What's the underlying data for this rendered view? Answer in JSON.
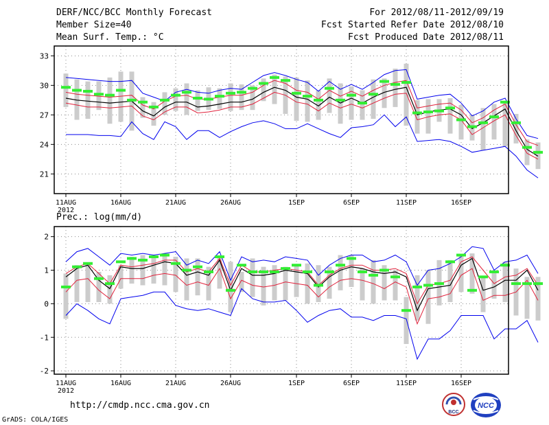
{
  "header": {
    "title": "DERF/NCC/BCC Monthly Forecast",
    "member": "Member Size=40",
    "variable": "Mean Surf. Temp.: °C",
    "period": "For 2012/08/11-2012/09/19",
    "started": "Fcst Started Refer Date 2012/08/10",
    "produced": "Fcst Produced Date 2012/08/11"
  },
  "footer": {
    "url": "http://cmdp.ncc.cma.gov.cn",
    "grads": "GrADS: COLA/IGES",
    "bcc_logo": "BCC",
    "ncc_logo": "NCC"
  },
  "colors": {
    "upper": "#0000ee",
    "lower": "#0000ee",
    "q_upper": "#e0203a",
    "q_lower": "#e0203a",
    "median": "#000000",
    "mean_mark": "#33ee33",
    "box": "#cccccc",
    "grid": "#888888"
  },
  "chart_data": [
    {
      "type": "box-plume",
      "title": "Mean Surf. Temp.: °C",
      "ylim": [
        19,
        34
      ],
      "yticks": [
        21,
        24,
        27,
        30,
        33
      ],
      "ytick_labels": [
        "21",
        "24",
        "27",
        "30",
        "33"
      ],
      "xtick_days": [
        0,
        5,
        10,
        15,
        21,
        26,
        31,
        36
      ],
      "xtick_labels": [
        "11AUG",
        "16AUG",
        "21AUG",
        "26AUG",
        "1SEP",
        "6SEP",
        "11SEP",
        "16SEP"
      ],
      "x_year_label": "2012",
      "upper": [
        30.8,
        30.7,
        30.6,
        30.5,
        30.4,
        30.4,
        30.5,
        29.2,
        28.8,
        28.4,
        29.3,
        29.6,
        29.3,
        29.2,
        29.5,
        29.7,
        29.6,
        30.3,
        31.0,
        31.3,
        31.0,
        30.6,
        30.3,
        29.4,
        30.4,
        29.6,
        30.1,
        29.6,
        30.3,
        31.1,
        31.5,
        31.6,
        28.6,
        28.8,
        29.0,
        29.1,
        28.2,
        26.9,
        27.4,
        28.3,
        28.7,
        26.6,
        24.9,
        24.6
      ],
      "q_upper": [
        29.3,
        29.1,
        29.0,
        28.9,
        28.8,
        28.9,
        29.0,
        28.0,
        27.6,
        28.4,
        28.9,
        29.0,
        28.6,
        28.6,
        28.8,
        29.0,
        29.0,
        29.3,
        30.0,
        30.5,
        30.2,
        29.5,
        29.3,
        28.6,
        29.5,
        28.9,
        29.4,
        28.9,
        29.5,
        30.0,
        30.3,
        30.5,
        27.7,
        27.9,
        28.1,
        28.2,
        27.5,
        26.2,
        26.7,
        27.5,
        28.1,
        26.0,
        24.3,
        23.9
      ],
      "median": [
        28.7,
        28.5,
        28.4,
        28.3,
        28.2,
        28.3,
        28.4,
        27.4,
        26.9,
        27.8,
        28.3,
        28.3,
        27.8,
        27.9,
        28.1,
        28.3,
        28.3,
        28.6,
        29.3,
        29.8,
        29.5,
        28.8,
        28.6,
        27.9,
        28.8,
        28.2,
        28.7,
        28.2,
        28.8,
        29.3,
        29.6,
        29.8,
        27.0,
        27.3,
        27.5,
        27.6,
        27.0,
        25.6,
        26.2,
        26.9,
        27.6,
        25.4,
        23.5,
        22.8
      ],
      "q_lower": [
        28.2,
        28.0,
        27.8,
        27.8,
        27.7,
        27.8,
        27.9,
        26.9,
        26.5,
        27.3,
        27.8,
        27.8,
        27.2,
        27.3,
        27.5,
        27.8,
        27.8,
        28.1,
        28.7,
        29.3,
        29.0,
        28.3,
        28.1,
        27.4,
        28.2,
        27.7,
        28.1,
        27.7,
        28.2,
        28.7,
        29.1,
        29.2,
        26.5,
        26.8,
        27.0,
        27.1,
        26.5,
        25.0,
        25.7,
        26.4,
        27.0,
        24.9,
        23.1,
        22.5
      ],
      "lower": [
        25.0,
        25.0,
        25.0,
        24.9,
        24.9,
        24.8,
        26.3,
        25.1,
        24.5,
        26.3,
        25.8,
        24.5,
        25.4,
        25.4,
        24.7,
        25.3,
        25.8,
        26.2,
        26.4,
        26.1,
        25.6,
        25.6,
        26.1,
        25.6,
        25.1,
        24.7,
        25.7,
        25.8,
        26.0,
        27.0,
        25.8,
        26.8,
        24.3,
        24.4,
        24.5,
        24.3,
        23.8,
        23.2,
        23.4,
        23.6,
        23.8,
        22.8,
        21.4,
        20.6
      ],
      "mean_marks": [
        29.8,
        29.5,
        29.4,
        29.1,
        29.0,
        29.5,
        28.5,
        28.3,
        27.8,
        28.5,
        29.0,
        29.3,
        28.7,
        28.6,
        28.9,
        29.2,
        29.3,
        29.7,
        30.2,
        30.8,
        30.5,
        29.2,
        28.9,
        28.5,
        29.7,
        28.5,
        29.0,
        28.2,
        29.1,
        30.4,
        30.1,
        30.3,
        27.2,
        27.3,
        27.4,
        27.7,
        26.5,
        25.8,
        26.2,
        26.8,
        28.3,
        26.2,
        23.7,
        23.2
      ],
      "box_hi": [
        31.2,
        30.6,
        30.4,
        30.4,
        30.8,
        31.4,
        31.4,
        28.8,
        28.3,
        29.3,
        29.7,
        30.2,
        29.5,
        29.8,
        29.7,
        30.2,
        30.1,
        30.0,
        30.7,
        31.1,
        30.9,
        30.8,
        30.5,
        29.5,
        30.7,
        30.2,
        29.9,
        29.5,
        30.6,
        30.7,
        31.7,
        32.2,
        28.5,
        28.6,
        28.6,
        28.7,
        28.0,
        27.0,
        27.7,
        28.1,
        28.3,
        27.1,
        24.5,
        24.2
      ],
      "box_lo": [
        27.8,
        26.5,
        26.6,
        27.5,
        26.1,
        26.3,
        25.4,
        26.7,
        25.9,
        27.0,
        27.4,
        27.0,
        27.4,
        27.5,
        27.6,
        27.4,
        27.5,
        27.5,
        28.4,
        28.1,
        27.1,
        26.4,
        26.3,
        26.5,
        27.2,
        26.1,
        26.5,
        26.5,
        26.6,
        27.7,
        27.8,
        25.9,
        25.1,
        25.1,
        26.3,
        25.1,
        24.5,
        24.4,
        23.4,
        24.5,
        23.8,
        24.1,
        21.9,
        21.5
      ]
    },
    {
      "type": "box-plume",
      "title": "Prec.: log(mm/d)",
      "ylim": [
        -2.1,
        2.3
      ],
      "yticks": [
        -2,
        -1,
        0,
        1,
        2
      ],
      "ytick_labels": [
        "-2",
        "-1",
        "0",
        "1",
        "2"
      ],
      "xtick_days": [
        0,
        5,
        10,
        15,
        21,
        26,
        31,
        36
      ],
      "xtick_labels": [
        "11AUG",
        "16AUG",
        "21AUG",
        "26AUG",
        "1SEP",
        "6SEP",
        "11SEP",
        "16SEP"
      ],
      "x_year_label": "2012",
      "upper": [
        1.25,
        1.55,
        1.65,
        1.4,
        1.15,
        1.5,
        1.45,
        1.5,
        1.45,
        1.5,
        1.55,
        1.15,
        1.3,
        1.2,
        1.55,
        0.7,
        1.4,
        1.25,
        1.3,
        1.25,
        1.4,
        1.35,
        1.3,
        0.85,
        1.15,
        1.35,
        1.45,
        1.45,
        1.25,
        1.3,
        1.45,
        1.25,
        0.55,
        1.0,
        1.05,
        1.2,
        1.4,
        1.7,
        1.65,
        1.0,
        1.25,
        1.3,
        1.45,
        0.9
      ],
      "q_upper": [
        0.9,
        1.1,
        1.2,
        0.9,
        0.6,
        1.15,
        1.1,
        1.15,
        1.2,
        1.3,
        1.3,
        0.95,
        1.05,
        0.95,
        1.35,
        0.55,
        1.15,
        0.95,
        0.95,
        1.0,
        1.05,
        1.0,
        0.95,
        0.55,
        0.85,
        1.05,
        1.15,
        1.15,
        1.0,
        1.0,
        1.05,
        0.9,
        0.0,
        0.55,
        0.6,
        0.7,
        1.25,
        1.4,
        1.0,
        0.6,
        0.8,
        0.85,
        1.05,
        0.55
      ],
      "median": [
        0.8,
        1.05,
        1.15,
        0.7,
        0.45,
        1.1,
        1.05,
        1.05,
        1.15,
        1.25,
        1.2,
        0.85,
        0.95,
        0.85,
        1.3,
        0.4,
        1.05,
        0.85,
        0.85,
        0.9,
        1.0,
        0.95,
        0.9,
        0.5,
        0.8,
        1.0,
        1.1,
        1.05,
        0.95,
        0.9,
        0.95,
        0.8,
        -0.2,
        0.45,
        0.5,
        0.55,
        1.15,
        1.35,
        0.4,
        0.5,
        0.7,
        0.7,
        1.0,
        0.4
      ],
      "q_lower": [
        0.35,
        0.7,
        0.75,
        0.4,
        0.15,
        0.75,
        0.75,
        0.75,
        0.85,
        0.9,
        0.85,
        0.55,
        0.65,
        0.55,
        1.05,
        0.15,
        0.7,
        0.55,
        0.5,
        0.55,
        0.65,
        0.6,
        0.55,
        0.2,
        0.5,
        0.7,
        0.75,
        0.7,
        0.6,
        0.45,
        0.65,
        0.5,
        -0.6,
        0.15,
        0.2,
        0.3,
        0.85,
        1.05,
        0.1,
        0.25,
        0.25,
        0.35,
        0.7,
        0.1
      ],
      "lower": [
        -0.35,
        0.0,
        -0.2,
        -0.45,
        -0.6,
        0.15,
        0.2,
        0.25,
        0.35,
        0.35,
        -0.05,
        -0.15,
        -0.2,
        -0.15,
        -0.25,
        -0.35,
        0.45,
        0.15,
        0.05,
        0.05,
        0.1,
        -0.2,
        -0.55,
        -0.35,
        -0.2,
        -0.15,
        -0.4,
        -0.4,
        -0.5,
        -0.35,
        -0.35,
        -0.45,
        -1.65,
        -1.05,
        -1.05,
        -0.8,
        -0.35,
        -0.35,
        -0.35,
        -1.05,
        -0.75,
        -0.75,
        -0.5,
        -1.15
      ],
      "mean_marks": [
        0.5,
        1.1,
        1.2,
        0.75,
        0.6,
        1.25,
        1.35,
        1.3,
        1.4,
        1.45,
        1.2,
        1.0,
        1.1,
        0.95,
        1.4,
        0.4,
        1.15,
        0.95,
        0.95,
        0.95,
        1.05,
        1.15,
        0.95,
        0.55,
        0.95,
        1.15,
        1.35,
        0.95,
        0.85,
        1.0,
        0.8,
        -0.2,
        0.5,
        0.55,
        0.6,
        1.25,
        1.45,
        0.4,
        0.8,
        0.95,
        1.15,
        0.6,
        0.6,
        0.6
      ],
      "box_hi": [
        0.9,
        1.15,
        1.2,
        0.95,
        0.85,
        1.15,
        1.4,
        1.45,
        1.4,
        1.45,
        1.4,
        1.35,
        1.35,
        1.1,
        1.4,
        1.25,
        0.95,
        1.35,
        1.1,
        1.15,
        1.1,
        1.15,
        1.2,
        1.15,
        1.1,
        1.45,
        1.45,
        1.05,
        1.3,
        1.15,
        1.0,
        0.2,
        0.85,
        1.0,
        1.3,
        1.3,
        1.45,
        1.5,
        0.8,
        1.0,
        1.25,
        1.05,
        0.8,
        0.8
      ],
      "box_lo": [
        -0.45,
        0.05,
        0.05,
        0.05,
        0.0,
        0.45,
        0.6,
        0.55,
        0.6,
        0.55,
        0.35,
        0.1,
        0.25,
        0.1,
        0.45,
        -0.25,
        0.35,
        0.2,
        -0.05,
        0.1,
        0.1,
        0.2,
        0.0,
        0.05,
        0.15,
        0.4,
        0.5,
        0.1,
        0.0,
        0.1,
        0.1,
        -1.2,
        -0.5,
        -0.6,
        -0.05,
        0.05,
        0.35,
        0.3,
        -0.25,
        0.15,
        0.05,
        -0.35,
        -0.45,
        -0.5
      ]
    }
  ]
}
